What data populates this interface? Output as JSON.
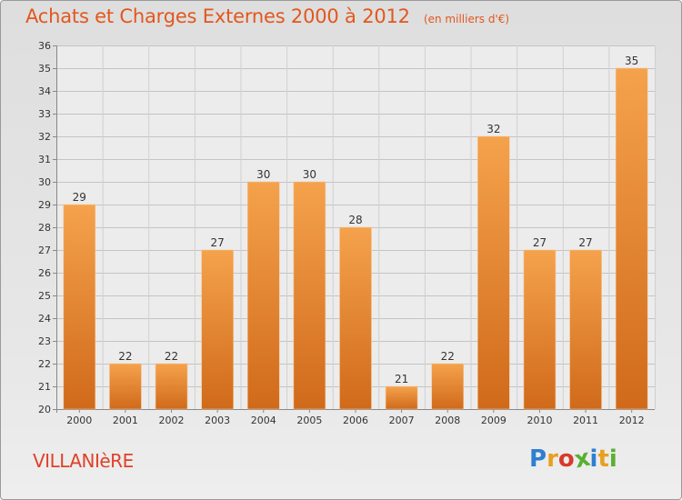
{
  "header": {
    "title": "Achats et Charges Externes 2000 à 2012",
    "unit": "(en milliers d'€)"
  },
  "commune": "VILLANIèRE",
  "logo": {
    "letters": [
      "P",
      "r",
      "o",
      "x",
      "i",
      "t",
      "i"
    ],
    "colors": [
      "#2f7fd0",
      "#e8a020",
      "#d83a2a",
      "#58b030",
      "#2f7fd0",
      "#e8a020",
      "#58b030"
    ]
  },
  "colors": {
    "bar_top": "#f5a24c",
    "bar_bottom": "#d06a1a",
    "title": "#e2571d",
    "commune": "#e0412a"
  },
  "chart_data": {
    "type": "bar",
    "title": "Achats et Charges Externes 2000 à 2012",
    "subtitle": "(en milliers d'€)",
    "categories": [
      "2000",
      "2001",
      "2002",
      "2003",
      "2004",
      "2005",
      "2006",
      "2007",
      "2008",
      "2009",
      "2010",
      "2011",
      "2012"
    ],
    "values": [
      29,
      22,
      22,
      27,
      30,
      30,
      28,
      21,
      22,
      32,
      27,
      27,
      35
    ],
    "ylim": [
      20,
      36
    ],
    "yticks": [
      20,
      21,
      22,
      23,
      24,
      25,
      26,
      27,
      28,
      29,
      30,
      31,
      32,
      33,
      34,
      35,
      36
    ],
    "grid": true,
    "data_labels": true
  }
}
